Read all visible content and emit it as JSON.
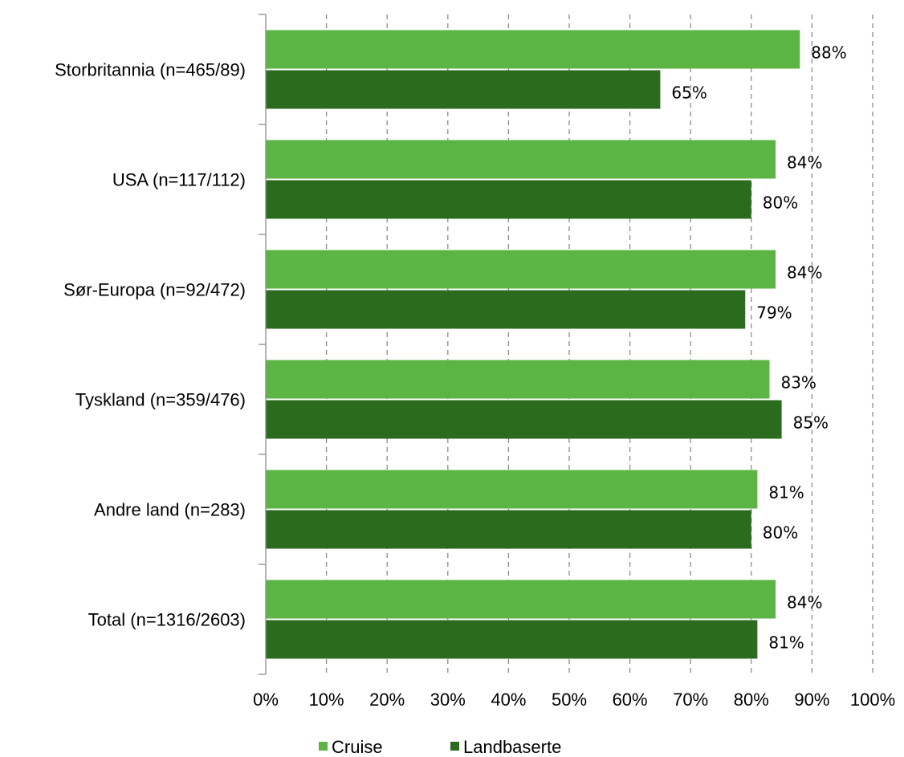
{
  "chart_data": {
    "type": "bar",
    "orientation": "horizontal",
    "categories": [
      "Storbritannia (n=465/89)",
      "USA (n=117/112)",
      "Sør-Europa (n=92/472)",
      "Tyskland (n=359/476)",
      "Andre land (n=283)",
      "Total (n=1316/2603)"
    ],
    "series": [
      {
        "name": "Cruise",
        "color": "#5CB444",
        "values": [
          88,
          84,
          84,
          83,
          81,
          84
        ],
        "labels": [
          "88%",
          "84%",
          "84%",
          "83%",
          "81%",
          "84%"
        ]
      },
      {
        "name": "Landbaserte",
        "color": "#2B6B1E",
        "values": [
          65,
          80,
          79,
          85,
          80,
          81
        ],
        "labels": [
          "65%",
          "80%",
          "79%",
          "85%",
          "80%",
          "81%"
        ]
      }
    ],
    "x_ticks": [
      "0%",
      "10%",
      "20%",
      "30%",
      "40%",
      "50%",
      "60%",
      "70%",
      "80%",
      "90%",
      "100%"
    ],
    "xlim": [
      0,
      100
    ],
    "grid": "vertical dashed",
    "legend": "bottom-center",
    "title": "",
    "xlabel": "",
    "ylabel": ""
  }
}
